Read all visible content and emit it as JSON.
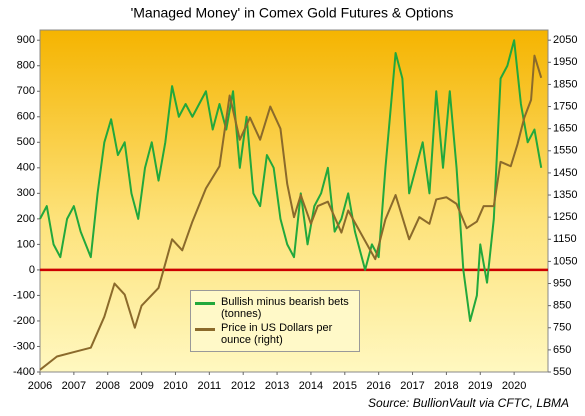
{
  "chart_data": {
    "type": "line",
    "title": "'Managed Money' in Comex Gold Futures & Options",
    "source": "Source: BullionVault via CFTC, LBMA",
    "xlim": [
      2006,
      2021
    ],
    "xticks": [
      2006,
      2007,
      2008,
      2009,
      2010,
      2011,
      2012,
      2013,
      2014,
      2015,
      2016,
      2017,
      2018,
      2019,
      2020
    ],
    "ylim": [
      -400,
      940
    ],
    "yticks": [
      -400,
      -300,
      -200,
      -100,
      0,
      100,
      200,
      300,
      400,
      500,
      600,
      700,
      800,
      900
    ],
    "y2lim": [
      550,
      2096
    ],
    "y2ticks": [
      550,
      650,
      750,
      850,
      950,
      1050,
      1150,
      1250,
      1350,
      1450,
      1550,
      1650,
      1750,
      1850,
      1950,
      2050
    ],
    "zero_line_color": "#cc0000",
    "grid": false,
    "legend": "lower center",
    "series": [
      {
        "name": "Bullish minus bearish bets (tonnes)",
        "color": "#22a83c",
        "x": [
          2006.0,
          2006.2,
          2006.4,
          2006.6,
          2006.8,
          2007.0,
          2007.2,
          2007.5,
          2007.7,
          2007.9,
          2008.1,
          2008.3,
          2008.5,
          2008.7,
          2008.9,
          2009.1,
          2009.3,
          2009.5,
          2009.7,
          2009.9,
          2010.1,
          2010.3,
          2010.5,
          2010.7,
          2010.9,
          2011.1,
          2011.3,
          2011.5,
          2011.7,
          2011.9,
          2012.1,
          2012.3,
          2012.5,
          2012.7,
          2012.9,
          2013.1,
          2013.3,
          2013.5,
          2013.7,
          2013.9,
          2014.1,
          2014.3,
          2014.5,
          2014.7,
          2014.9,
          2015.1,
          2015.3,
          2015.6,
          2015.8,
          2016.0,
          2016.2,
          2016.5,
          2016.7,
          2016.9,
          2017.1,
          2017.3,
          2017.5,
          2017.7,
          2017.9,
          2018.1,
          2018.3,
          2018.5,
          2018.7,
          2018.9,
          2019.0,
          2019.2,
          2019.4,
          2019.6,
          2019.8,
          2020.0,
          2020.2,
          2020.4,
          2020.6,
          2020.8
        ],
        "values": [
          200,
          250,
          100,
          50,
          200,
          250,
          150,
          50,
          300,
          500,
          590,
          450,
          500,
          300,
          200,
          400,
          500,
          350,
          500,
          720,
          600,
          650,
          600,
          650,
          700,
          550,
          650,
          550,
          700,
          400,
          600,
          300,
          250,
          450,
          400,
          200,
          100,
          50,
          300,
          100,
          250,
          300,
          400,
          150,
          200,
          300,
          150,
          0,
          100,
          50,
          400,
          850,
          750,
          300,
          400,
          500,
          300,
          700,
          400,
          700,
          400,
          0,
          -200,
          -100,
          100,
          -50,
          200,
          750,
          800,
          900,
          650,
          500,
          550,
          400
        ]
      },
      {
        "name": "Price in US Dollars per ounce (right)",
        "color": "#8b6a2b",
        "axis": "y2",
        "x": [
          2006.0,
          2006.5,
          2007.0,
          2007.5,
          2007.9,
          2008.2,
          2008.5,
          2008.8,
          2009.0,
          2009.5,
          2009.9,
          2010.2,
          2010.5,
          2010.9,
          2011.3,
          2011.6,
          2011.9,
          2012.2,
          2012.5,
          2012.8,
          2013.1,
          2013.3,
          2013.5,
          2013.7,
          2014.0,
          2014.2,
          2014.5,
          2014.9,
          2015.1,
          2015.5,
          2015.9,
          2016.2,
          2016.5,
          2016.9,
          2017.2,
          2017.5,
          2017.7,
          2018.0,
          2018.3,
          2018.6,
          2018.9,
          2019.1,
          2019.4,
          2019.6,
          2019.9,
          2020.1,
          2020.3,
          2020.5,
          2020.6,
          2020.7,
          2020.8
        ],
        "values": [
          560,
          620,
          640,
          660,
          800,
          950,
          900,
          750,
          850,
          930,
          1150,
          1100,
          1230,
          1380,
          1480,
          1800,
          1600,
          1700,
          1600,
          1750,
          1650,
          1400,
          1250,
          1350,
          1220,
          1300,
          1320,
          1180,
          1280,
          1170,
          1060,
          1240,
          1350,
          1150,
          1250,
          1220,
          1330,
          1340,
          1310,
          1200,
          1230,
          1300,
          1300,
          1500,
          1480,
          1580,
          1700,
          1780,
          1980,
          1930,
          1880
        ]
      }
    ]
  }
}
